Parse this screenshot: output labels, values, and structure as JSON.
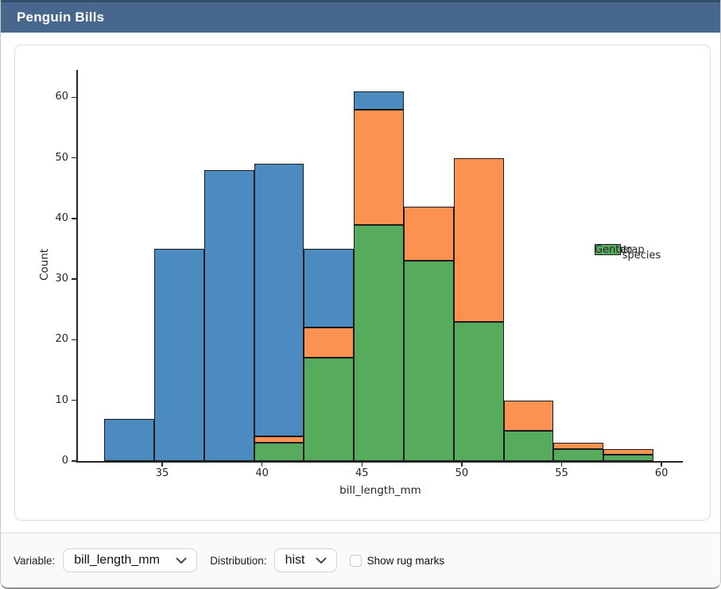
{
  "title_bar": {
    "title": "Penguin Bills"
  },
  "colors": {
    "titlebar_bg": "#47688c",
    "titlebar_accent": "#344f6c",
    "adelie_blue": "#4c8bbf",
    "chinstrap_orange": "#fc9252",
    "gentoo_green": "#56ab5d",
    "bar_edge": "#1b1b1b",
    "axis_text": "#262626"
  },
  "controls": {
    "variable_label": "Variable:",
    "variable_value": "bill_length_mm",
    "distribution_label": "Distribution:",
    "distribution_value": "hist",
    "rug_label": "Show rug marks",
    "rug_checked": false
  },
  "chart_data": {
    "type": "bar",
    "subtype": "stacked-histogram",
    "title": "",
    "xlabel": "bill_length_mm",
    "ylabel": "Count",
    "x_ticks": [
      35,
      40,
      45,
      50,
      55,
      60
    ],
    "y_ticks": [
      0,
      10,
      20,
      30,
      40,
      50,
      60
    ],
    "xlim": [
      30.78,
      61.07
    ],
    "ylim": [
      0,
      64.5
    ],
    "grid": false,
    "legend_title": "species",
    "legend_position": "center-right",
    "bin_edges": [
      32.1,
      34.6,
      37.1,
      39.6,
      42.1,
      44.6,
      47.1,
      49.6,
      52.1,
      54.6,
      57.1,
      59.6
    ],
    "series": [
      {
        "name": "Adelie",
        "color": "#4c8bbf",
        "values": [
          7,
          35,
          48,
          45,
          13,
          3,
          0,
          0,
          0,
          0,
          0
        ]
      },
      {
        "name": "Chinstrap",
        "color": "#fc9252",
        "values": [
          0,
          0,
          0,
          1,
          5,
          19,
          9,
          27,
          5,
          1,
          1
        ]
      },
      {
        "name": "Gentoo",
        "color": "#56ab5d",
        "values": [
          0,
          0,
          0,
          3,
          17,
          39,
          33,
          23,
          5,
          2,
          1
        ]
      }
    ],
    "stack_order_bottom_to_top": [
      "Gentoo",
      "Chinstrap",
      "Adelie"
    ],
    "bin_totals": [
      7,
      35,
      48,
      49,
      35,
      61,
      42,
      50,
      10,
      3,
      2
    ]
  }
}
